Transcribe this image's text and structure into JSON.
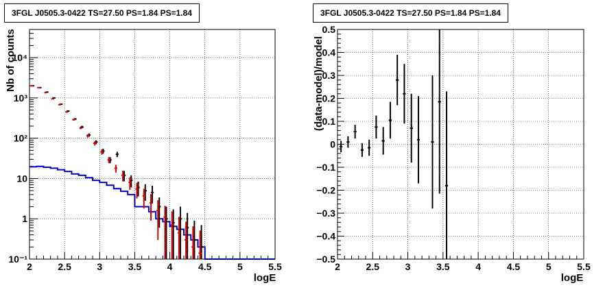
{
  "chart_data": [
    {
      "type": "line",
      "title": "3FGL J0505.3-0422 TS=27.50 PS=1.84 PS=1.84",
      "xlabel": "logE",
      "ylabel": "Nb of counts",
      "xlim": [
        2,
        5.5
      ],
      "ylim": [
        0.1,
        50000
      ],
      "yscale": "log",
      "grid": true,
      "x_ticks": [
        "2",
        "2.5",
        "3",
        "3.5",
        "4",
        "4.5",
        "5",
        "5.5"
      ],
      "y_ticks": [
        "10⁻¹",
        "1",
        "10",
        "10²",
        "10³",
        "10⁴"
      ],
      "series": [
        {
          "role": "data",
          "color": "#000000",
          "x": [
            2.05,
            2.15,
            2.25,
            2.35,
            2.45,
            2.55,
            2.65,
            2.75,
            2.85,
            2.95,
            3.05,
            3.15,
            3.25,
            3.35,
            3.45,
            3.55,
            3.65,
            3.75,
            3.85,
            3.95,
            4.05,
            4.15,
            4.25,
            4.35,
            4.45
          ],
          "y": [
            2000,
            1800,
            1400,
            1000,
            700,
            470,
            300,
            190,
            120,
            80,
            48,
            29,
            40,
            12,
            9,
            6,
            5,
            4.5,
            2,
            1,
            0.8,
            1,
            0.6,
            0.3,
            0.2
          ],
          "yerr": [
            45,
            42,
            37,
            32,
            26,
            22,
            17,
            14,
            11,
            9,
            7,
            5,
            6,
            3.5,
            3,
            2.4,
            2.2,
            2.1,
            1.4,
            1,
            0.9,
            1,
            0.8,
            0.6,
            0.5
          ]
        },
        {
          "role": "model",
          "color": "#dd0000",
          "x": [
            2.05,
            2.15,
            2.25,
            2.35,
            2.45,
            2.55,
            2.65,
            2.75,
            2.85,
            2.95,
            3.05,
            3.15,
            3.25,
            3.35,
            3.45,
            3.55,
            3.65,
            3.75,
            3.85,
            3.95,
            4.05,
            4.15,
            4.25,
            4.35,
            4.45
          ],
          "y": [
            2000,
            1800,
            1350,
            950,
            680,
            450,
            290,
            180,
            115,
            75,
            46,
            29,
            18,
            12,
            8,
            5.5,
            3.7,
            2.5,
            1.6,
            1.1,
            0.7,
            0.45,
            0.3,
            0.2,
            0.14
          ],
          "yerr": [
            45,
            42,
            37,
            31,
            26,
            21,
            17,
            13,
            11,
            9,
            7,
            5,
            4,
            3.5,
            2.8,
            2.3,
            1.9,
            1.6,
            1.3,
            1,
            0.84,
            0.67,
            0.55,
            0.45,
            0.37
          ]
        },
        {
          "role": "component",
          "color": "#0000cc",
          "x": [
            2.05,
            2.15,
            2.25,
            2.35,
            2.45,
            2.55,
            2.65,
            2.75,
            2.85,
            2.95,
            3.05,
            3.15,
            3.25,
            3.35,
            3.45,
            3.55,
            3.65,
            3.75,
            3.85,
            3.95,
            4.05,
            4.15,
            4.25,
            4.35,
            4.45,
            4.55,
            4.65,
            4.75,
            4.85,
            4.95,
            5.05,
            5.15,
            5.25,
            5.35,
            5.45
          ],
          "y": [
            19.5,
            20,
            19,
            18,
            16.5,
            15,
            13,
            12,
            10.5,
            9,
            8,
            6.8,
            5.6,
            4.8,
            4,
            2,
            2,
            1.5,
            1,
            0.85,
            0.65,
            0.55,
            0.4,
            0.3,
            0.2,
            0.1,
            0.1,
            0.1,
            0.1,
            0.1,
            0.1,
            0.1,
            0.1,
            0.1,
            0.1
          ]
        }
      ]
    },
    {
      "type": "scatter",
      "title": "3FGL J0505.3-0422 TS=27.50 PS=1.84 PS=1.84",
      "xlabel": "logE",
      "ylabel": "(data-model)/model",
      "xlim": [
        2,
        5.5
      ],
      "ylim": [
        -0.5,
        0.5
      ],
      "grid": true,
      "x_ticks": [
        "2",
        "2.5",
        "3",
        "3.5",
        "4",
        "4.5",
        "5",
        "5.5"
      ],
      "y_ticks": [
        "−0.5",
        "−0.4",
        "−0.3",
        "−0.2",
        "−0.1",
        "0",
        "0.1",
        "0.2",
        "0.3",
        "0.4",
        "0.5"
      ],
      "series": [
        {
          "color": "#000000",
          "x": [
            2.05,
            2.15,
            2.25,
            2.35,
            2.45,
            2.55,
            2.65,
            2.75,
            2.85,
            2.95,
            3.05,
            3.15,
            3.35,
            3.45,
            3.55
          ],
          "y": [
            -0.01,
            0.01,
            0.055,
            -0.025,
            -0.015,
            0.075,
            0.015,
            0.105,
            0.28,
            0.22,
            0.07,
            0.02,
            0.01,
            0.185,
            -0.18
          ],
          "yerr": [
            0.025,
            0.025,
            0.03,
            0.03,
            0.035,
            0.05,
            0.06,
            0.08,
            0.11,
            0.13,
            0.15,
            0.19,
            0.29,
            0.4,
            0.41
          ]
        }
      ]
    }
  ]
}
